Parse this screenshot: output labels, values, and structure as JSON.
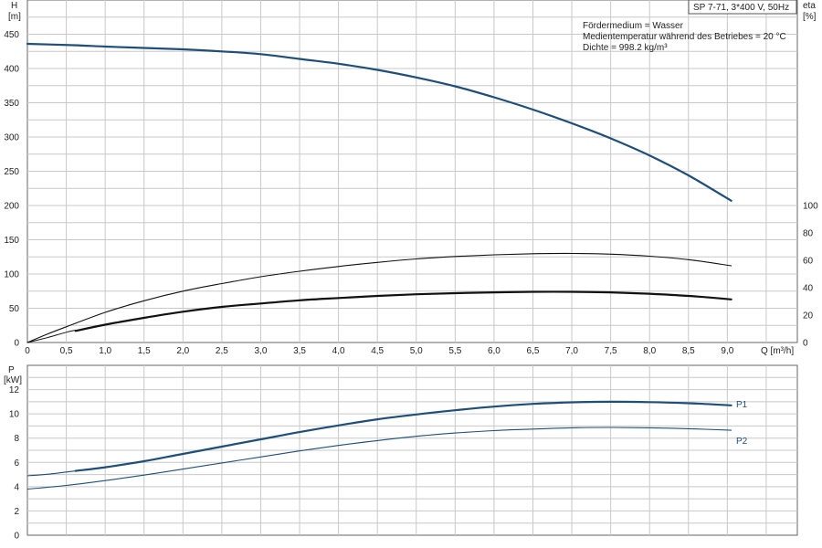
{
  "title": "SP 7-71, 3*400 V, 50Hz",
  "info_lines": [
    "Fördermedium = Wasser",
    "Medientemperatur während des Betriebes = 20 °C",
    "Dichte = 998.2 kg/m³"
  ],
  "chart_data": [
    {
      "type": "line",
      "x_axis": {
        "label": "Q [m³/h]",
        "ticks": [
          "0",
          "0,5",
          "1,0",
          "1,5",
          "2,0",
          "2,5",
          "3,0",
          "3,5",
          "4,0",
          "4,5",
          "5,0",
          "5,5",
          "6,0",
          "6,5",
          "7,0",
          "7,5",
          "8,0",
          "8,5",
          "9,0"
        ],
        "range": [
          0,
          9.9
        ]
      },
      "y_axis_left": {
        "label_line1": "H",
        "label_line2": "[m]",
        "ticks": [
          0,
          50,
          100,
          150,
          200,
          250,
          300,
          350,
          400,
          450
        ],
        "range": [
          0,
          500
        ]
      },
      "y_axis_right": {
        "label_line1": "eta",
        "label_line2": "[%]",
        "ticks": [
          0,
          20,
          40,
          60,
          80,
          100
        ],
        "range": [
          0,
          100
        ]
      },
      "grid": true,
      "series": [
        {
          "axis": "left",
          "color": "#1f4e79",
          "width": 2.2,
          "points": [
            [
              0,
              436
            ],
            [
              0.6,
              434
            ],
            [
              1,
              432
            ],
            [
              1.5,
              430
            ],
            [
              2,
              428
            ],
            [
              2.5,
              425
            ],
            [
              3,
              421
            ],
            [
              3.5,
              414
            ],
            [
              4,
              407
            ],
            [
              4.5,
              398
            ],
            [
              5,
              387
            ],
            [
              5.5,
              374
            ],
            [
              6,
              358
            ],
            [
              6.5,
              340
            ],
            [
              7,
              320
            ],
            [
              7.5,
              298
            ],
            [
              8,
              273
            ],
            [
              8.5,
              244
            ],
            [
              9.05,
              207
            ]
          ]
        },
        {
          "axis": "right",
          "color": "#111111",
          "width": 1.1,
          "points": [
            [
              0,
              0
            ],
            [
              0.25,
              6
            ],
            [
              0.5,
              11.5
            ],
            [
              1,
              22
            ],
            [
              1.5,
              30.5
            ],
            [
              2,
              37.5
            ],
            [
              2.5,
              43
            ],
            [
              3,
              48
            ],
            [
              3.5,
              52
            ],
            [
              4,
              55.5
            ],
            [
              4.5,
              58.5
            ],
            [
              5,
              61
            ],
            [
              5.5,
              62.8
            ],
            [
              6,
              64
            ],
            [
              6.5,
              64.8
            ],
            [
              7,
              65
            ],
            [
              7.5,
              64.5
            ],
            [
              8,
              63
            ],
            [
              8.5,
              60.5
            ],
            [
              9.05,
              56
            ]
          ]
        },
        {
          "axis": "right",
          "color": "#111111",
          "width": 2.2,
          "points": [
            [
              0.62,
              8.5
            ],
            [
              1,
              13
            ],
            [
              1.5,
              18
            ],
            [
              2,
              22.5
            ],
            [
              2.5,
              26
            ],
            [
              3,
              28.5
            ],
            [
              3.5,
              30.8
            ],
            [
              4,
              32.5
            ],
            [
              4.5,
              34
            ],
            [
              5,
              35.2
            ],
            [
              5.5,
              36
            ],
            [
              6,
              36.6
            ],
            [
              6.5,
              37
            ],
            [
              7,
              37
            ],
            [
              7.5,
              36.6
            ],
            [
              8,
              35.6
            ],
            [
              8.5,
              34
            ],
            [
              9.05,
              31.5
            ]
          ]
        },
        {
          "axis": "right",
          "color": "#111111",
          "width": 1.0,
          "points": [
            [
              0,
              0
            ],
            [
              0.25,
              3.5
            ],
            [
              0.5,
              7.5
            ],
            [
              0.62,
              9
            ]
          ]
        }
      ]
    },
    {
      "type": "line",
      "x_axis": {
        "range": [
          0,
          9.9
        ]
      },
      "y_axis_left": {
        "label_line1": "P",
        "label_line2": "[kW]",
        "ticks": [
          0,
          2,
          4,
          6,
          8,
          10,
          12
        ],
        "range": [
          0,
          14
        ]
      },
      "grid": true,
      "series": [
        {
          "name": "P1",
          "color": "#1f4e79",
          "width": 2.2,
          "points": [
            [
              0.62,
              5.3
            ],
            [
              1,
              5.6
            ],
            [
              1.5,
              6.1
            ],
            [
              2,
              6.7
            ],
            [
              2.5,
              7.3
            ],
            [
              3,
              7.9
            ],
            [
              3.5,
              8.5
            ],
            [
              4,
              9.05
            ],
            [
              4.5,
              9.55
            ],
            [
              5,
              9.95
            ],
            [
              5.5,
              10.3
            ],
            [
              6,
              10.6
            ],
            [
              6.5,
              10.82
            ],
            [
              7,
              10.95
            ],
            [
              7.5,
              11.0
            ],
            [
              8,
              10.97
            ],
            [
              8.5,
              10.88
            ],
            [
              9.05,
              10.7
            ]
          ]
        },
        {
          "color": "#1f4e79",
          "width": 1.1,
          "points": [
            [
              0,
              4.9
            ],
            [
              0.3,
              5.05
            ],
            [
              0.62,
              5.3
            ]
          ]
        },
        {
          "name": "P2",
          "color": "#1f4e79",
          "width": 1.1,
          "points": [
            [
              0,
              3.8
            ],
            [
              0.5,
              4.1
            ],
            [
              1,
              4.5
            ],
            [
              1.5,
              4.95
            ],
            [
              2,
              5.45
            ],
            [
              2.5,
              5.95
            ],
            [
              3,
              6.45
            ],
            [
              3.5,
              6.95
            ],
            [
              4,
              7.4
            ],
            [
              4.5,
              7.8
            ],
            [
              5,
              8.15
            ],
            [
              5.5,
              8.42
            ],
            [
              6,
              8.62
            ],
            [
              6.5,
              8.75
            ],
            [
              7,
              8.85
            ],
            [
              7.5,
              8.88
            ],
            [
              8,
              8.85
            ],
            [
              8.5,
              8.78
            ],
            [
              9.05,
              8.65
            ]
          ]
        }
      ]
    }
  ]
}
